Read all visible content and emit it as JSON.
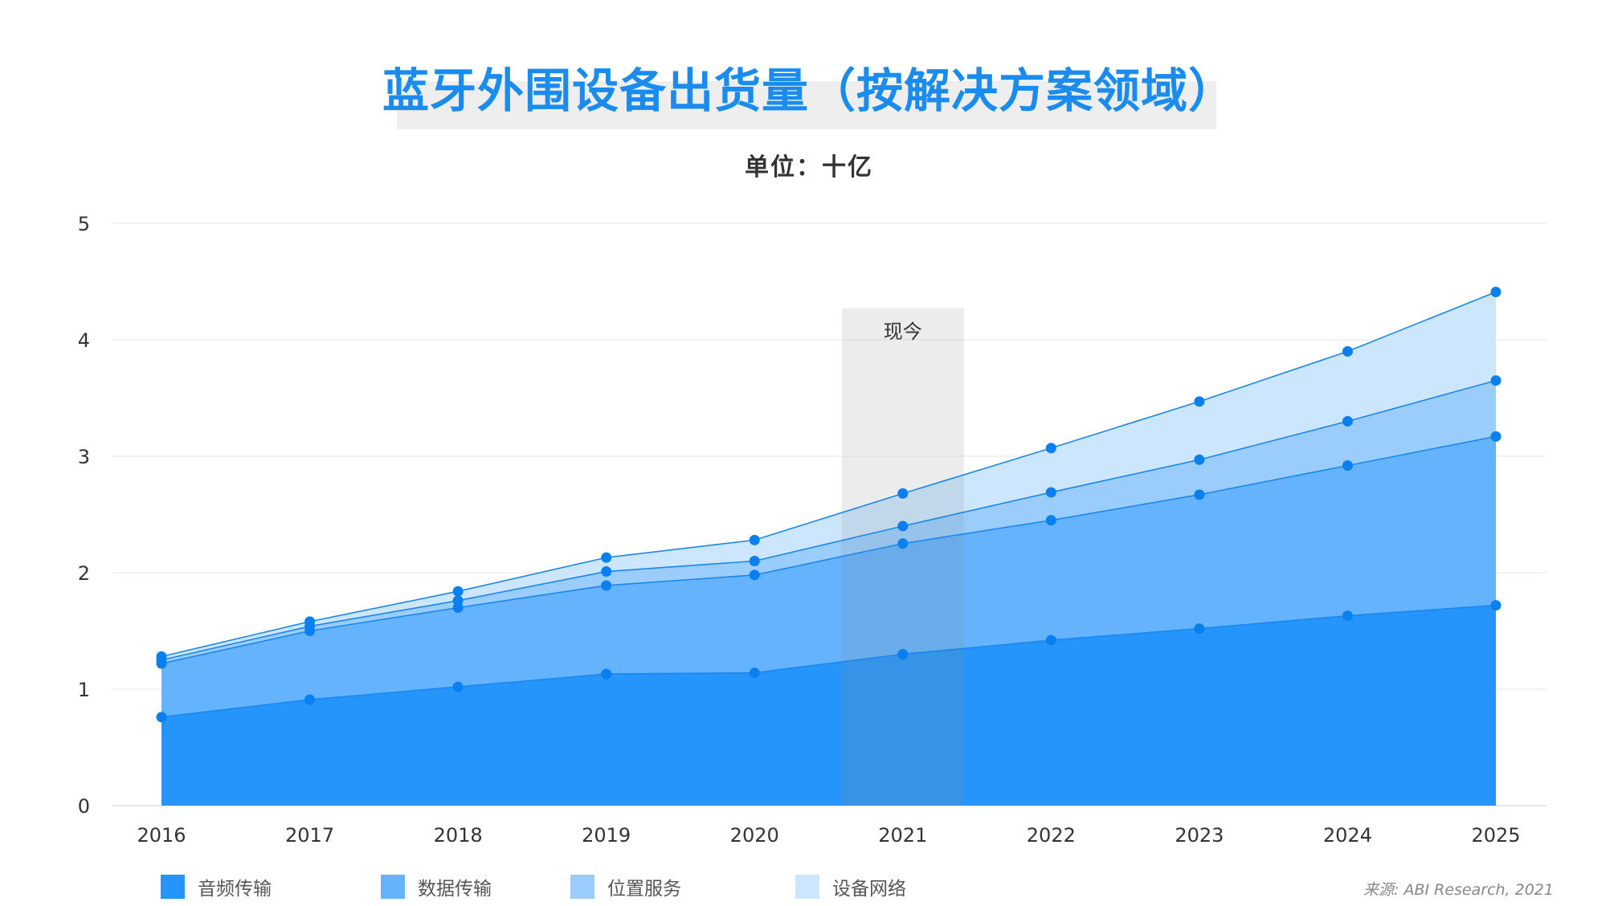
{
  "header": {
    "title": "蓝牙外围设备出货量（按解决方案领域）",
    "subtitle": "单位：十亿"
  },
  "source": "来源: ABI Research, 2021",
  "colors": {
    "title": "#1a8cf0",
    "highlight_band": "#eeeeee",
    "line": "#1a87f0",
    "marker": "#0a7ff0",
    "grid": "#e6e6e6",
    "axis_text": "#333333"
  },
  "chart_data": {
    "type": "area",
    "stacked": true,
    "title": "蓝牙外围设备出货量（按解决方案领域）",
    "subtitle": "单位：十亿",
    "x": [
      "2016",
      "2017",
      "2018",
      "2019",
      "2020",
      "2021",
      "2022",
      "2023",
      "2024",
      "2025"
    ],
    "ylim": [
      0,
      5
    ],
    "yticks": [
      "0",
      "1",
      "2",
      "3",
      "4",
      "5"
    ],
    "grid": true,
    "legend_position": "bottom-left",
    "series": [
      {
        "name": "音频传输",
        "color": "#2595fb",
        "cumulative": [
          0.76,
          0.91,
          1.02,
          1.13,
          1.14,
          1.3,
          1.42,
          1.52,
          1.63,
          1.72
        ]
      },
      {
        "name": "数据传输",
        "color": "#64b3fc",
        "cumulative": [
          1.22,
          1.5,
          1.7,
          1.89,
          1.98,
          2.25,
          2.45,
          2.67,
          2.92,
          3.17
        ]
      },
      {
        "name": "位置服务",
        "color": "#9acdfc",
        "cumulative": [
          1.25,
          1.54,
          1.76,
          2.01,
          2.1,
          2.4,
          2.69,
          2.97,
          3.3,
          3.65
        ]
      },
      {
        "name": "设备网络",
        "color": "#cce6fd",
        "cumulative": [
          1.28,
          1.58,
          1.84,
          2.13,
          2.28,
          2.68,
          3.07,
          3.47,
          3.9,
          4.41
        ]
      }
    ],
    "highlight": {
      "category": "2021",
      "label": "现今"
    }
  }
}
